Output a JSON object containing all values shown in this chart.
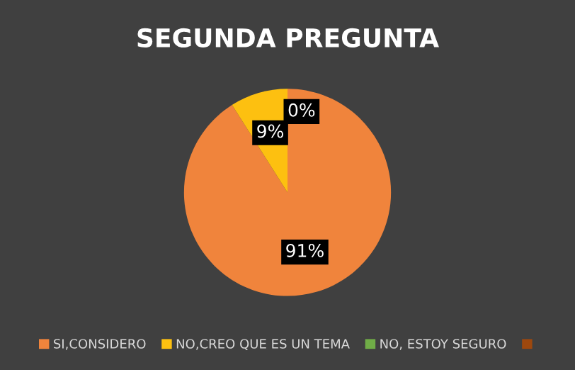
{
  "chart_data": {
    "type": "pie",
    "title": "SEGUNDA PREGUNTA",
    "categories": [
      "SI,CONSIDERO",
      "NO,CREO QUE ES UN TEMA",
      "NO, ESTOY SEGURO",
      null
    ],
    "values": [
      91,
      9,
      0,
      0
    ],
    "colors": [
      "#f0843c",
      "#fdc010",
      "#70ad47",
      "#9e480e"
    ],
    "value_labels": [
      "91%",
      "9%",
      "0%",
      null
    ],
    "legend": "bottom"
  }
}
